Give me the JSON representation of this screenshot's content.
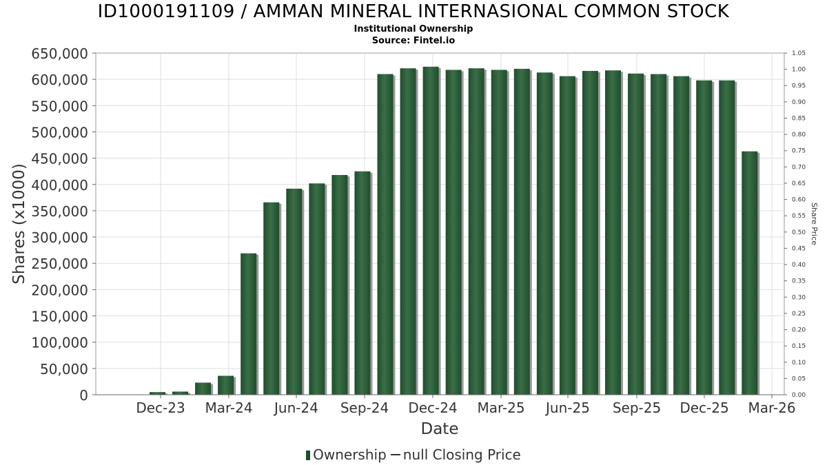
{
  "title": "ID1000191109 / AMMAN MINERAL INTERNASIONAL COMMON STOCK",
  "subtitle": "Institutional Ownership",
  "source": "Source: Fintel.io",
  "legend": {
    "ownership": "Ownership",
    "price": "null Closing Price"
  },
  "colors": {
    "bar": "#1f4d2c",
    "bar_highlight": "#3a6e47",
    "shadow": "#9a9a9a",
    "grid": "#dddddd"
  },
  "chart_data": {
    "type": "bar",
    "title": "ID1000191109 / AMMAN MINERAL INTERNASIONAL COMMON STOCK",
    "subtitle": "Institutional Ownership",
    "xlabel": "Date",
    "ylabel": "Shares (x1000)",
    "y2label": "Share Price",
    "x_tick_labels": [
      "Dec-23",
      "Mar-24",
      "Jun-24",
      "Sep-24",
      "Dec-24",
      "Mar-25",
      "Jun-25",
      "Sep-25",
      "Dec-25",
      "Mar-26"
    ],
    "ylim": [
      0,
      650000
    ],
    "y_ticks": [
      "0",
      "50,000",
      "100,000",
      "150,000",
      "200,000",
      "250,000",
      "300,000",
      "350,000",
      "400,000",
      "450,000",
      "500,000",
      "550,000",
      "600,000",
      "650,000"
    ],
    "y2lim": [
      0,
      1.05
    ],
    "y2_ticks": [
      "0.00",
      "0.05",
      "0.10",
      "0.15",
      "0.20",
      "0.25",
      "0.30",
      "0.35",
      "0.40",
      "0.45",
      "0.50",
      "0.55",
      "0.60",
      "0.65",
      "0.70",
      "0.75",
      "0.80",
      "0.85",
      "0.90",
      "0.95",
      "1.00",
      "1.05"
    ],
    "grid": true,
    "legend_position": "bottom",
    "series": [
      {
        "name": "Ownership",
        "values": [
          5000,
          6000,
          23000,
          36000,
          269000,
          366000,
          392000,
          402000,
          418000,
          425000,
          610000,
          621000,
          624000,
          618000,
          621000,
          618000,
          620000,
          613000,
          606000,
          616000,
          617000,
          611000,
          610000,
          606000,
          598000,
          598000,
          463000
        ]
      }
    ]
  }
}
